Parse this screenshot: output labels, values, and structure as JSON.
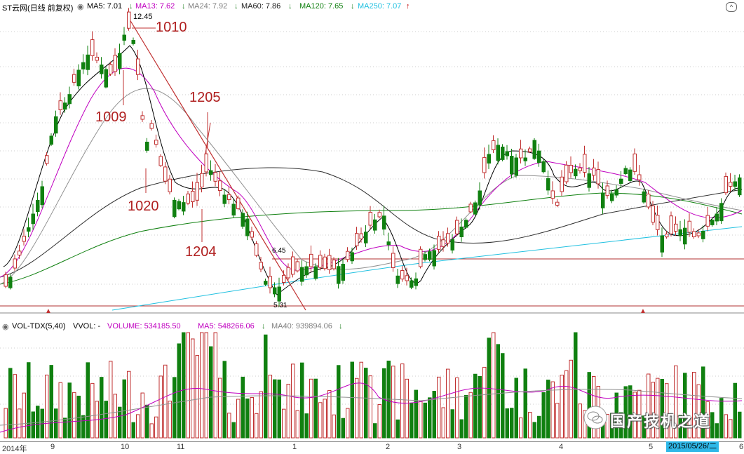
{
  "price_legend": {
    "title": "ST云网(日线 前复权)",
    "ma5": "MA5: 7.01",
    "ma13": "MA13: 7.62",
    "ma24": "MA24: 7.92",
    "ma60": "MA60: 7.86",
    "ma120": "MA120: 7.65",
    "ma250": "MA250: 7.07",
    "arrow_down": "↓",
    "arrow_up": "↑",
    "colors": {
      "ma5": "#000000",
      "ma13": "#c000c0",
      "ma24": "#808080",
      "ma60": "#202020",
      "ma120": "#108010",
      "ma250": "#20c0e0"
    }
  },
  "volume_legend": {
    "title": "VOL-TDX(5,40)",
    "vvol": "VVOL: -",
    "volume": "VOLUME: 534185.50",
    "ma5": "MA5: 548266.06",
    "ma40": "MA40: 939894.06",
    "arrow_down": "↓"
  },
  "annotations": {
    "high_price": "12.45",
    "label_1010": "1010",
    "label_1009": "1009",
    "label_1205": "1205",
    "label_1020": "1020",
    "label_1204": "1204",
    "support_price": "6.45",
    "low_price": "5.31"
  },
  "time_axis": [
    "2014年",
    "9",
    "10",
    "11",
    "1",
    "2",
    "3",
    "4",
    "5",
    "2015/05/26/二",
    "6"
  ],
  "watermark": "国产技机之道",
  "chart_data": {
    "type": "candlestick",
    "note_series": "daily candles sampled, price units in CNY",
    "price_range": [
      5.31,
      12.45
    ],
    "high": 12.45,
    "low": 5.31,
    "reference_lines": [
      6.45,
      5.31
    ]
  }
}
